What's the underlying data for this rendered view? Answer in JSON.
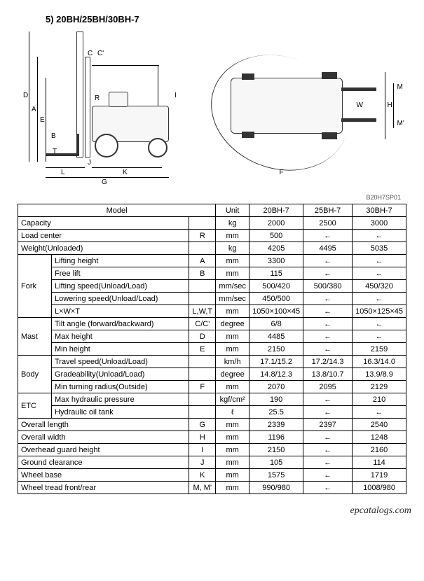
{
  "heading": "5) 20BH/25BH/30BH-7",
  "diagram_ref": "B20H7SP01",
  "watermark": "epcatalogs.com",
  "diagram_labels": {
    "side": {
      "D": "D",
      "A": "A",
      "E": "E",
      "B": "B",
      "R": "R",
      "T": "T",
      "L": "L",
      "G": "G",
      "K": "K",
      "I": "I",
      "J": "J",
      "C": "C",
      "Cp": "C'"
    },
    "top": {
      "H": "H",
      "W": "W",
      "M": "M",
      "Mp": "M'",
      "F": "F"
    }
  },
  "table": {
    "header": {
      "model": "Model",
      "unit": "Unit",
      "m1": "20BH-7",
      "m2": "25BH-7",
      "m3": "30BH-7"
    },
    "rows": [
      {
        "grp": "Capacity",
        "lbl": "",
        "span": true,
        "sym": "",
        "unit": "kg",
        "v": [
          "2000",
          "2500",
          "3000"
        ]
      },
      {
        "grp": "Load center",
        "lbl": "",
        "span": true,
        "sym": "R",
        "unit": "mm",
        "v": [
          "500",
          "←",
          "←"
        ]
      },
      {
        "grp": "Weight(Unloaded)",
        "lbl": "",
        "span": true,
        "sym": "",
        "unit": "kg",
        "v": [
          "4205",
          "4495",
          "5035"
        ]
      },
      {
        "grp": "Fork",
        "lbl": "Lifting height",
        "sym": "A",
        "unit": "mm",
        "v": [
          "3300",
          "←",
          "←"
        ],
        "first": true,
        "rowspan": 5
      },
      {
        "lbl": "Free lift",
        "sym": "B",
        "unit": "mm",
        "v": [
          "115",
          "←",
          "←"
        ]
      },
      {
        "lbl": "Lifting speed(Unload/Load)",
        "sym": "",
        "unit": "mm/sec",
        "v": [
          "500/420",
          "500/380",
          "450/320"
        ]
      },
      {
        "lbl": "Lowering speed(Unload/Load)",
        "sym": "",
        "unit": "mm/sec",
        "v": [
          "450/500",
          "←",
          "←"
        ]
      },
      {
        "lbl": "L×W×T",
        "sym": "L,W,T",
        "unit": "mm",
        "v": [
          "1050×100×45",
          "←",
          "1050×125×45"
        ]
      },
      {
        "grp": "Mast",
        "lbl": "Tilt angle (forward/backward)",
        "sym": "C/C'",
        "unit": "degree",
        "v": [
          "6/8",
          "←",
          "←"
        ],
        "first": true,
        "rowspan": 3
      },
      {
        "lbl": "Max height",
        "sym": "D",
        "unit": "mm",
        "v": [
          "4485",
          "←",
          "←"
        ]
      },
      {
        "lbl": "Min height",
        "sym": "E",
        "unit": "mm",
        "v": [
          "2150",
          "←",
          "2159"
        ]
      },
      {
        "grp": "Body",
        "lbl": "Travel speed(Unload/Load)",
        "sym": "",
        "unit": "km/h",
        "v": [
          "17.1/15.2",
          "17.2/14.3",
          "16.3/14.0"
        ],
        "first": true,
        "rowspan": 3
      },
      {
        "lbl": "Gradeability(Unload/Load)",
        "sym": "",
        "unit": "degree",
        "v": [
          "14.8/12.3",
          "13.8/10.7",
          "13.9/8.9"
        ]
      },
      {
        "lbl": "Min turning radius(Outside)",
        "sym": "F",
        "unit": "mm",
        "v": [
          "2070",
          "2095",
          "2129"
        ]
      },
      {
        "grp": "ETC",
        "lbl": "Max hydraulic pressure",
        "sym": "",
        "unit": "kgf/cm²",
        "v": [
          "190",
          "←",
          "210"
        ],
        "first": true,
        "rowspan": 2
      },
      {
        "lbl": "Hydraulic oil tank",
        "sym": "",
        "unit": "ℓ",
        "v": [
          "25.5",
          "←",
          "←"
        ]
      },
      {
        "grp": "Overall length",
        "lbl": "",
        "span": true,
        "sym": "G",
        "unit": "mm",
        "v": [
          "2339",
          "2397",
          "2540"
        ]
      },
      {
        "grp": "Overall width",
        "lbl": "",
        "span": true,
        "sym": "H",
        "unit": "mm",
        "v": [
          "1196",
          "←",
          "1248"
        ]
      },
      {
        "grp": "Overhead guard height",
        "lbl": "",
        "span": true,
        "sym": "I",
        "unit": "mm",
        "v": [
          "2150",
          "←",
          "2160"
        ]
      },
      {
        "grp": "Ground clearance",
        "lbl": "",
        "span": true,
        "sym": "J",
        "unit": "mm",
        "v": [
          "105",
          "←",
          "114"
        ]
      },
      {
        "grp": "Wheel base",
        "lbl": "",
        "span": true,
        "sym": "K",
        "unit": "mm",
        "v": [
          "1575",
          "←",
          "1719"
        ]
      },
      {
        "grp": "Wheel tread front/rear",
        "lbl": "",
        "span": true,
        "sym": "M, M'",
        "unit": "mm",
        "v": [
          "990/980",
          "←",
          "1008/980"
        ]
      }
    ]
  }
}
